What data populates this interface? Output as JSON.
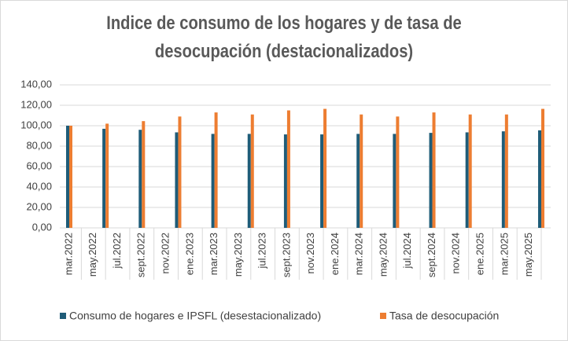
{
  "chart_data": {
    "type": "bar",
    "title": "Indice de consumo de los hogares y de tasa de desocupación (destacionalizados)",
    "categories": [
      "mar.2022",
      null,
      "may.2022",
      null,
      "jul.2022",
      null,
      "sept.2022",
      null,
      "nov.2022",
      null,
      "ene.2023",
      null,
      "mar.2023",
      null,
      "may.2023",
      null,
      "jul.2023",
      null,
      "sept.2023",
      null,
      "nov.2023",
      null,
      "ene.2024",
      null,
      "mar.2024",
      null,
      "may.2024",
      null,
      "jul.2024",
      null,
      "sept.2024",
      null,
      "nov.2024",
      null,
      "ene.2025",
      null,
      "mar.2025",
      null,
      "may.2025",
      null
    ],
    "series": [
      {
        "name": "Consumo de hogares e IPSFL (desestacionalizado)",
        "color": "#1f5c78",
        "values": [
          100,
          null,
          null,
          97,
          null,
          null,
          96,
          null,
          null,
          93.5,
          null,
          null,
          92,
          null,
          null,
          92,
          null,
          null,
          91.5,
          null,
          null,
          91.5,
          null,
          null,
          92,
          null,
          null,
          92,
          null,
          null,
          93,
          null,
          null,
          93.5,
          null,
          null,
          94.5,
          null,
          null,
          95.5
        ]
      },
      {
        "name": "Tasa de desocupación",
        "color": "#ed7d31",
        "values": [
          100,
          null,
          null,
          102,
          null,
          null,
          104.5,
          null,
          null,
          109,
          null,
          null,
          113,
          null,
          null,
          111,
          null,
          null,
          115,
          null,
          null,
          116.5,
          null,
          null,
          111,
          null,
          null,
          109,
          null,
          null,
          113,
          null,
          null,
          111,
          null,
          null,
          111,
          null,
          null,
          116.5
        ]
      }
    ],
    "ylim": [
      0,
      140
    ],
    "yticks": [
      {
        "value": 0,
        "label": "0,00"
      },
      {
        "value": 20,
        "label": "20,00"
      },
      {
        "value": 40,
        "label": "40,00"
      },
      {
        "value": 60,
        "label": "60,00"
      },
      {
        "value": 80,
        "label": "80,00"
      },
      {
        "value": 100,
        "label": "100,00"
      },
      {
        "value": 120,
        "label": "120,00"
      },
      {
        "value": 140,
        "label": "140,00"
      }
    ],
    "grid": true
  }
}
